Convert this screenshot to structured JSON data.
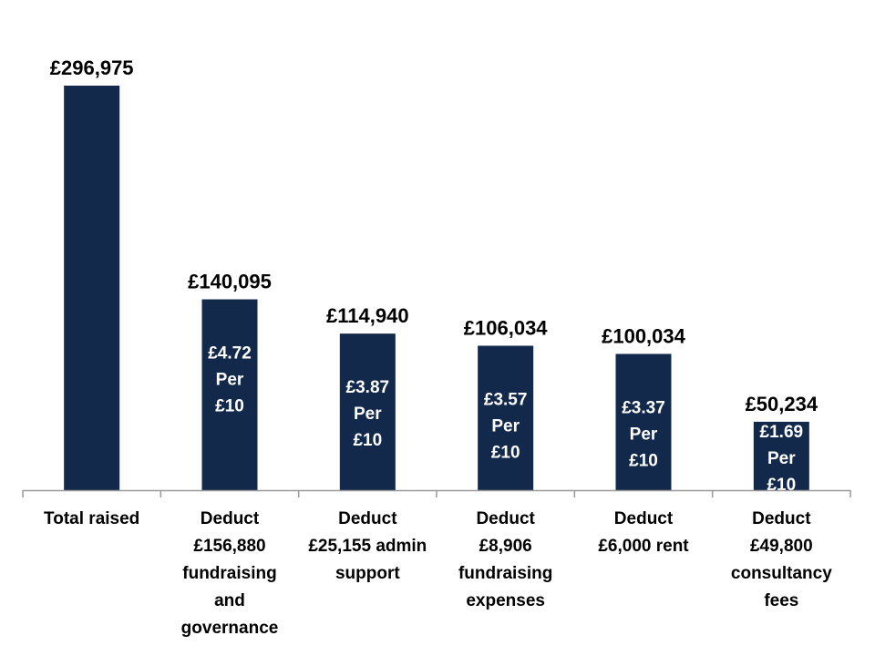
{
  "chart_data": {
    "type": "bar",
    "categories": [
      [
        "Total raised"
      ],
      [
        "Deduct",
        "£156,880",
        "fundraising",
        "and",
        "governance"
      ],
      [
        "Deduct",
        "£25,155 admin",
        "support"
      ],
      [
        "Deduct",
        "£8,906",
        "fundraising",
        "expenses"
      ],
      [
        "Deduct",
        "£6,000 rent"
      ],
      [
        "Deduct",
        "£49,800",
        "consultancy",
        "fees"
      ]
    ],
    "values": [
      296975,
      140095,
      114940,
      106034,
      100034,
      50234
    ],
    "value_labels": [
      "£296,975",
      "£140,095",
      "£114,940",
      "£106,034",
      "£100,034",
      "£50,234"
    ],
    "inner_labels": [
      [],
      [
        "£4.72",
        "Per",
        "£10"
      ],
      [
        "£3.87",
        "Per",
        "£10"
      ],
      [
        "£3.57",
        "Per",
        "£10"
      ],
      [
        "£3.37",
        "Per",
        "£10"
      ],
      [
        "£1.69",
        "Per",
        "£10"
      ]
    ],
    "ylim": [
      0,
      340000
    ],
    "bar_color": "#13294b",
    "axis_color": "#999999",
    "grid": false,
    "legend": "none",
    "title": "",
    "xlabel": "",
    "ylabel": ""
  }
}
